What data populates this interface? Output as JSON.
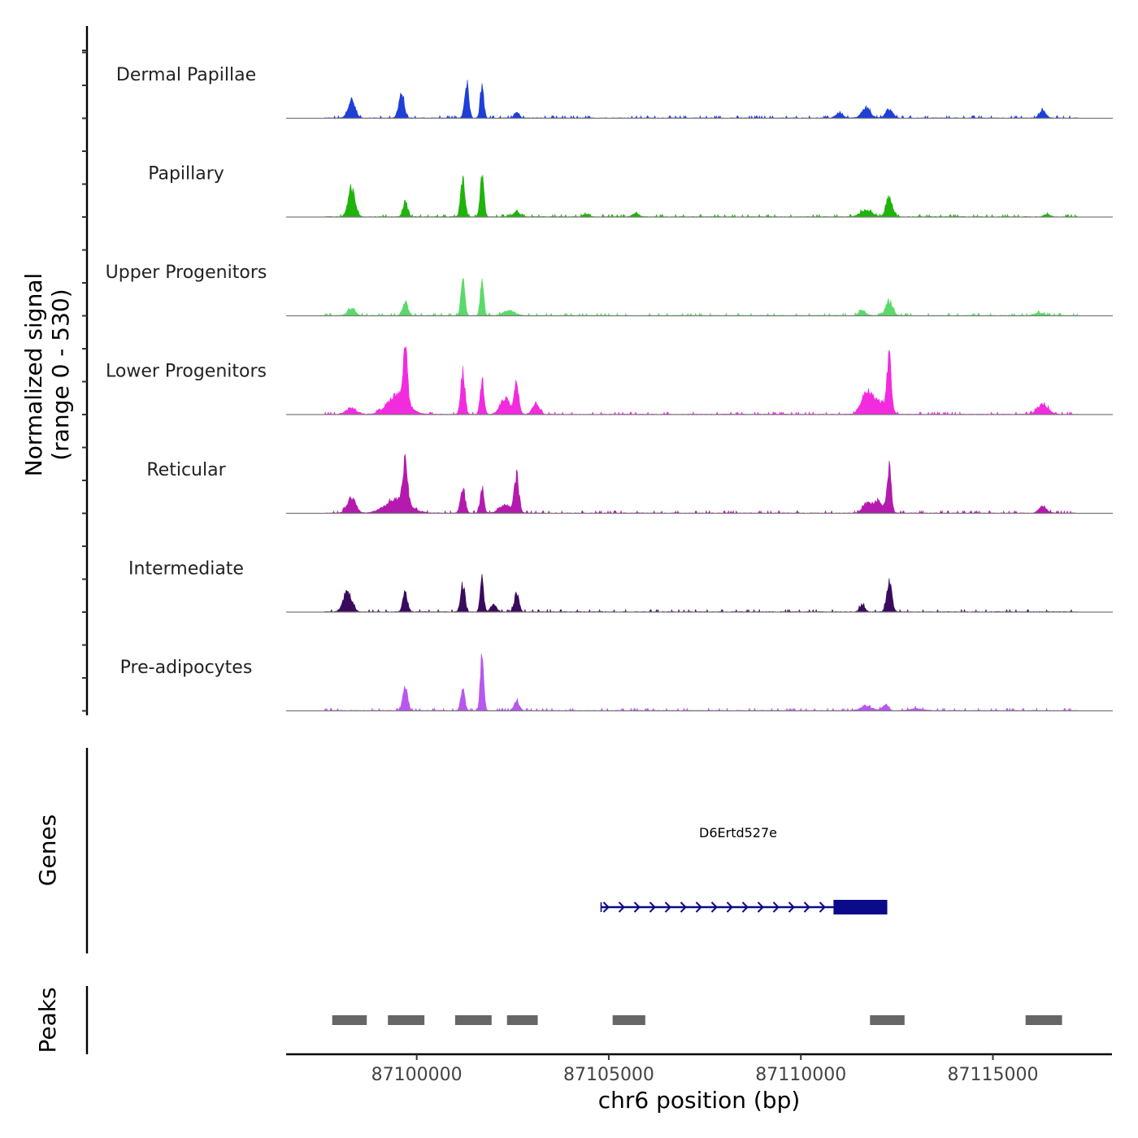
{
  "chart_data": {
    "type": "area",
    "chromosome": "chr6",
    "xlabel": "chr6 position (bp)",
    "xlim": [
      87096600,
      87118100
    ],
    "x_ticks": [
      87100000,
      87105000,
      87110000,
      87115000
    ],
    "x_tick_labels": [
      "87100000",
      "87105000",
      "87110000",
      "87115000"
    ],
    "ylabel_line1": "Normalized signal",
    "ylabel_line2": "(range 0 - 530)",
    "ylim": [
      0,
      530
    ],
    "signal_extent": [
      87097600,
      87117200
    ],
    "tracks": [
      {
        "name": "Dermal Papillae",
        "color": "#1f3fd9",
        "peaks": [
          [
            87098300,
            110,
            90
          ],
          [
            87099600,
            150,
            70
          ],
          [
            87101300,
            215,
            55
          ],
          [
            87101700,
            200,
            45
          ],
          [
            87102600,
            40,
            60
          ],
          [
            87111000,
            30,
            90
          ],
          [
            87111700,
            60,
            110
          ],
          [
            87112300,
            55,
            90
          ],
          [
            87116300,
            45,
            80
          ]
        ]
      },
      {
        "name": "Papillary",
        "color": "#1fb30b",
        "peaks": [
          [
            87098300,
            170,
            90
          ],
          [
            87099700,
            90,
            60
          ],
          [
            87101200,
            230,
            55
          ],
          [
            87101700,
            240,
            50
          ],
          [
            87102600,
            30,
            80
          ],
          [
            87104400,
            15,
            70
          ],
          [
            87105700,
            20,
            80
          ],
          [
            87111700,
            40,
            150
          ],
          [
            87112300,
            120,
            80
          ],
          [
            87116400,
            15,
            80
          ]
        ]
      },
      {
        "name": "Upper Progenitors",
        "color": "#5cd96b",
        "peaks": [
          [
            87098300,
            40,
            100
          ],
          [
            87099700,
            80,
            70
          ],
          [
            87101200,
            230,
            50
          ],
          [
            87101700,
            210,
            45
          ],
          [
            87102400,
            30,
            150
          ],
          [
            87111600,
            30,
            90
          ],
          [
            87112300,
            85,
            90
          ],
          [
            87116200,
            15,
            120
          ]
        ]
      },
      {
        "name": "Lower Progenitors",
        "color": "#f22bde",
        "peaks": [
          [
            87098300,
            35,
            140
          ],
          [
            87099500,
            120,
            250
          ],
          [
            87099700,
            330,
            55
          ],
          [
            87101200,
            250,
            55
          ],
          [
            87101700,
            210,
            50
          ],
          [
            87102300,
            100,
            120
          ],
          [
            87102600,
            170,
            60
          ],
          [
            87103100,
            60,
            90
          ],
          [
            87111700,
            110,
            130
          ],
          [
            87112000,
            80,
            200
          ],
          [
            87112300,
            330,
            55
          ],
          [
            87116300,
            60,
            140
          ]
        ]
      },
      {
        "name": "Reticular",
        "color": "#b31aad",
        "peaks": [
          [
            87098300,
            90,
            110
          ],
          [
            87099500,
            80,
            300
          ],
          [
            87099700,
            240,
            60
          ],
          [
            87101200,
            150,
            60
          ],
          [
            87101700,
            140,
            50
          ],
          [
            87102300,
            50,
            150
          ],
          [
            87102600,
            220,
            60
          ],
          [
            87111700,
            50,
            100
          ],
          [
            87112000,
            70,
            150
          ],
          [
            87112300,
            260,
            55
          ],
          [
            87116300,
            40,
            100
          ]
        ]
      },
      {
        "name": "Intermediate",
        "color": "#3a0a5e",
        "peaks": [
          [
            87098200,
            120,
            110
          ],
          [
            87099700,
            120,
            60
          ],
          [
            87101200,
            170,
            55
          ],
          [
            87101700,
            200,
            45
          ],
          [
            87102000,
            40,
            80
          ],
          [
            87102600,
            110,
            60
          ],
          [
            87111600,
            40,
            70
          ],
          [
            87112300,
            190,
            65
          ]
        ]
      },
      {
        "name": "Pre-adipocytes",
        "color": "#b857ed",
        "peaks": [
          [
            87099700,
            150,
            60
          ],
          [
            87101200,
            150,
            50
          ],
          [
            87101700,
            330,
            45
          ],
          [
            87102600,
            55,
            70
          ],
          [
            87111700,
            25,
            150
          ],
          [
            87112200,
            35,
            80
          ],
          [
            87113000,
            12,
            150
          ]
        ]
      }
    ],
    "gene": {
      "name": "D6Ertd527e",
      "strand": "+",
      "start": 87104800,
      "end": 87112250,
      "exon_start": 87110850,
      "exon_end": 87112250,
      "color": "#0a0a8a"
    },
    "genes_label": "Genes",
    "peaks_label": "Peaks",
    "peak_regions": [
      [
        87097800,
        87098700
      ],
      [
        87099250,
        87100200
      ],
      [
        87101000,
        87101950
      ],
      [
        87102350,
        87103150
      ],
      [
        87105100,
        87105950
      ],
      [
        87111800,
        87112700
      ],
      [
        87115850,
        87116800
      ]
    ],
    "peak_color": "#666666"
  }
}
